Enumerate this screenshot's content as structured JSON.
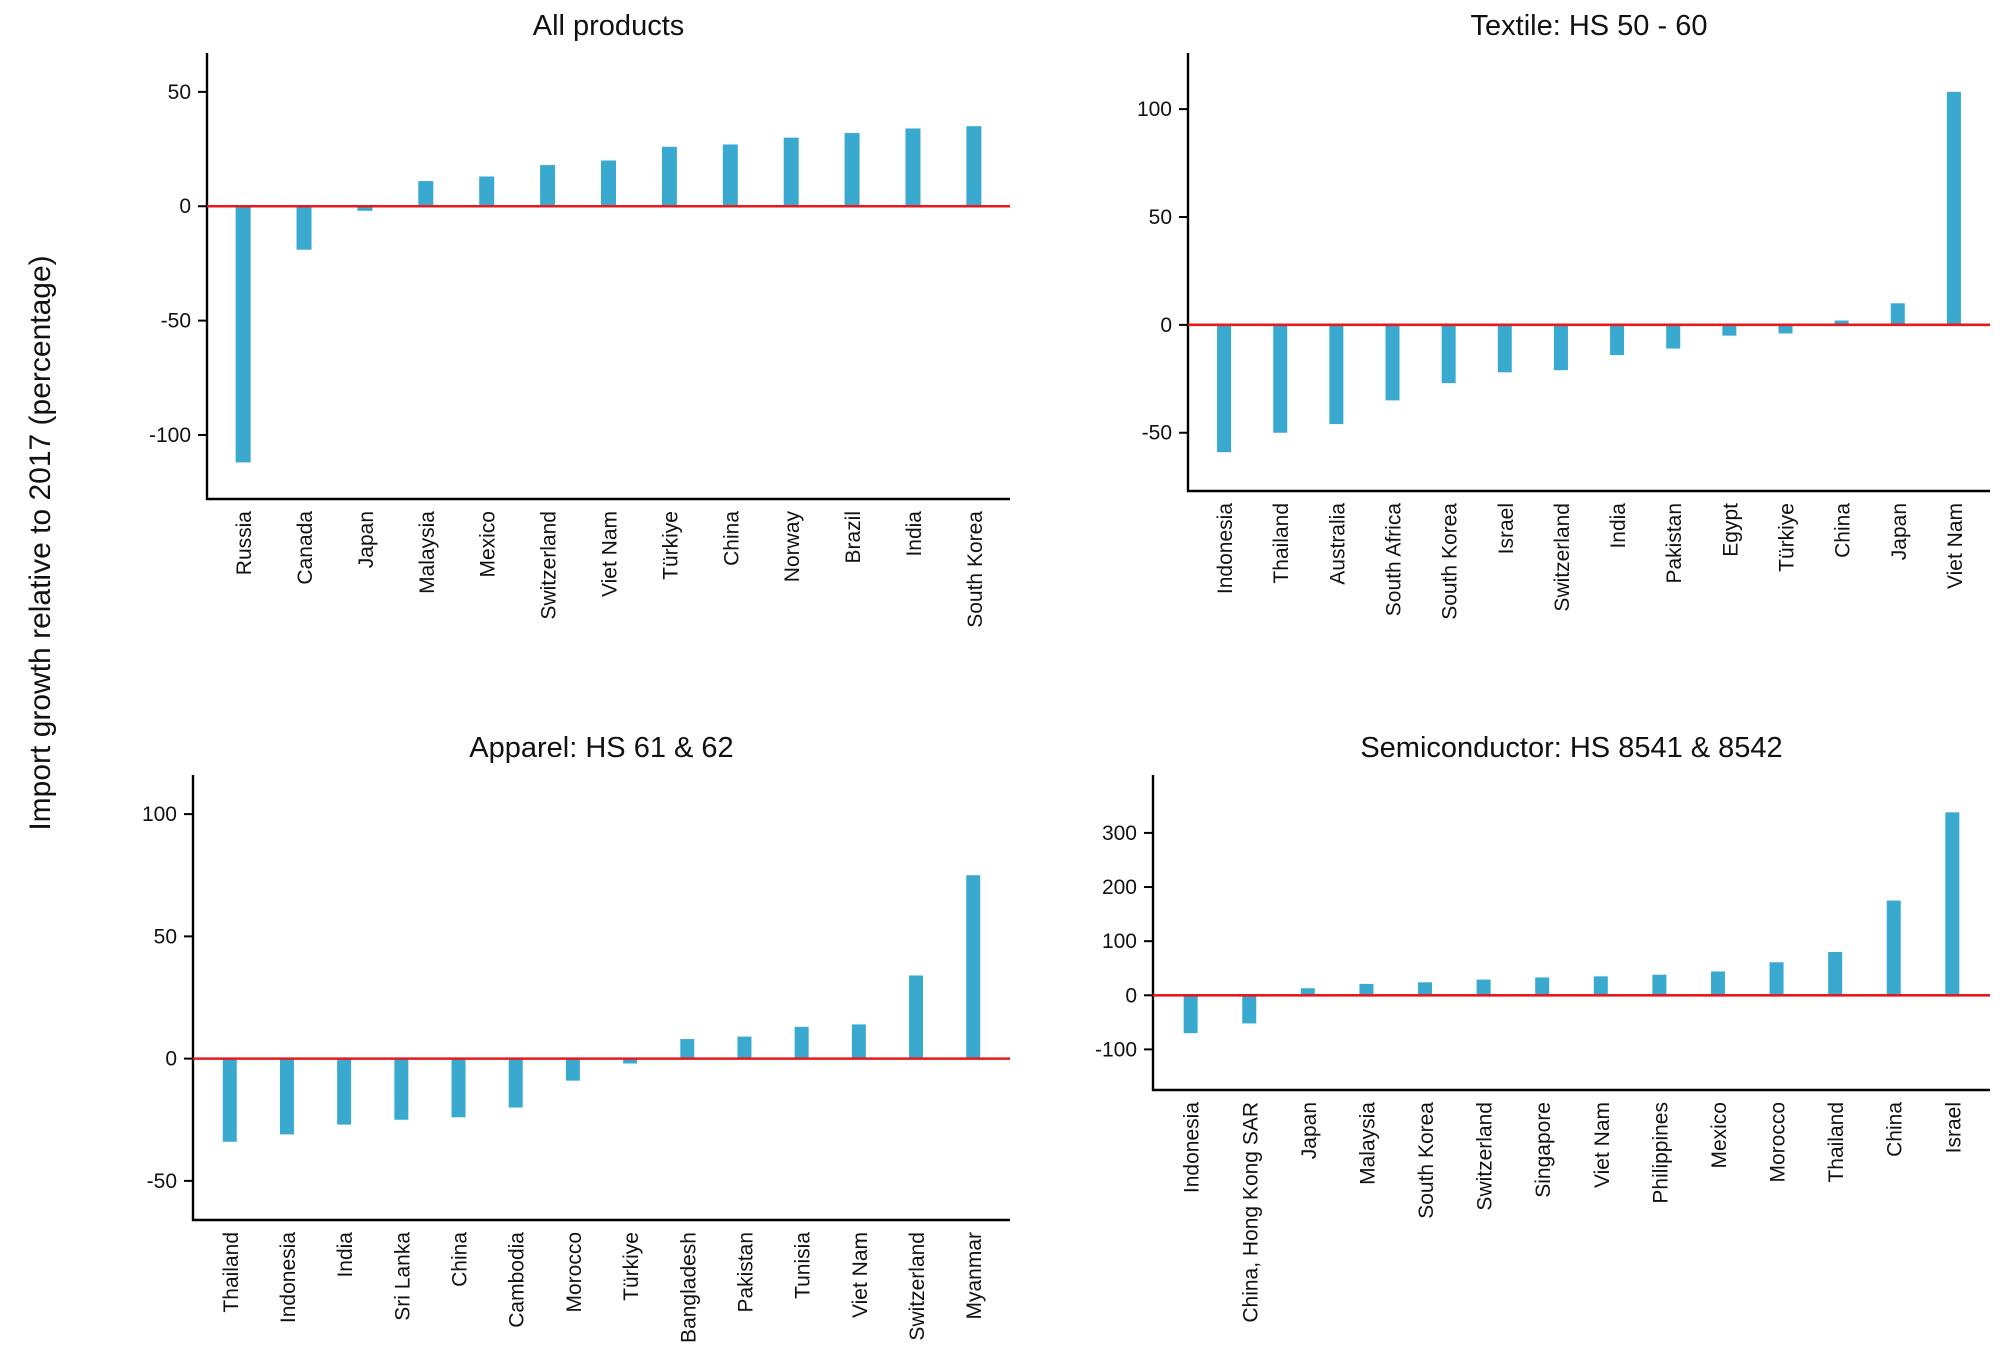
{
  "figure": {
    "ylabel": "Import growth relative to 2017 (percentage)",
    "bar_color": "#3aa9cf",
    "zero_line_color": "#e8191d"
  },
  "chart_data": [
    {
      "type": "bar",
      "title": "All products",
      "ylabel": "Import growth relative to 2017 (percentage)",
      "yticks": [
        50,
        0,
        -50,
        -100
      ],
      "ylim": [
        -128,
        67
      ],
      "categories": [
        "Russia",
        "Canada",
        "Japan",
        "Malaysia",
        "Mexico",
        "Switzerland",
        "Viet Nam",
        "Türkiye",
        "China",
        "Norway",
        "Brazil",
        "India",
        "South Korea"
      ],
      "values": [
        -112,
        -19,
        -2,
        11,
        13,
        18,
        20,
        26,
        27,
        30,
        32,
        34,
        35
      ]
    },
    {
      "type": "bar",
      "title": "Textile: HS 50 - 60",
      "ylabel": "Import growth relative to 2017 (percentage)",
      "yticks": [
        100,
        50,
        0,
        -50
      ],
      "ylim": [
        -77,
        126
      ],
      "categories": [
        "Indonesia",
        "Thailand",
        "Australia",
        "South Africa",
        "South Korea",
        "Israel",
        "Switzerland",
        "India",
        "Pakistan",
        "Egypt",
        "Türkiye",
        "China",
        "Japan",
        "Viet Nam"
      ],
      "values": [
        -59,
        -50,
        -46,
        -35,
        -27,
        -22,
        -21,
        -14,
        -11,
        -5,
        -4,
        2,
        10,
        108
      ]
    },
    {
      "type": "bar",
      "title": "Apparel: HS 61 & 62",
      "ylabel": "Import growth relative to 2017 (percentage)",
      "yticks": [
        100,
        50,
        0,
        -50
      ],
      "ylim": [
        -66,
        116
      ],
      "categories": [
        "Thailand",
        "Indonesia",
        "India",
        "Sri Lanka",
        "China",
        "Cambodia",
        "Morocco",
        "Türkiye",
        "Bangladesh",
        "Pakistan",
        "Tunisia",
        "Viet Nam",
        "Switzerland",
        "Myanmar"
      ],
      "values": [
        -34,
        -31,
        -27,
        -25,
        -24,
        -20,
        -9,
        -2,
        8,
        9,
        13,
        14,
        34,
        75
      ]
    },
    {
      "type": "bar",
      "title": "Semiconductor: HS 8541 & 8542",
      "ylabel": "Import growth relative to 2017 (percentage)",
      "yticks": [
        300,
        200,
        100,
        0,
        -100
      ],
      "ylim": [
        -175,
        407
      ],
      "categories": [
        "Indonesia",
        "China, Hong Kong SAR",
        "Japan",
        "Malaysia",
        "South Korea",
        "Switzerland",
        "Singapore",
        "Viet Nam",
        "Philippines",
        "Mexico",
        "Morocco",
        "Thailand",
        "China",
        "Israel"
      ],
      "values": [
        -70,
        -52,
        13,
        21,
        24,
        29,
        33,
        35,
        38,
        44,
        61,
        80,
        175,
        338
      ]
    }
  ]
}
